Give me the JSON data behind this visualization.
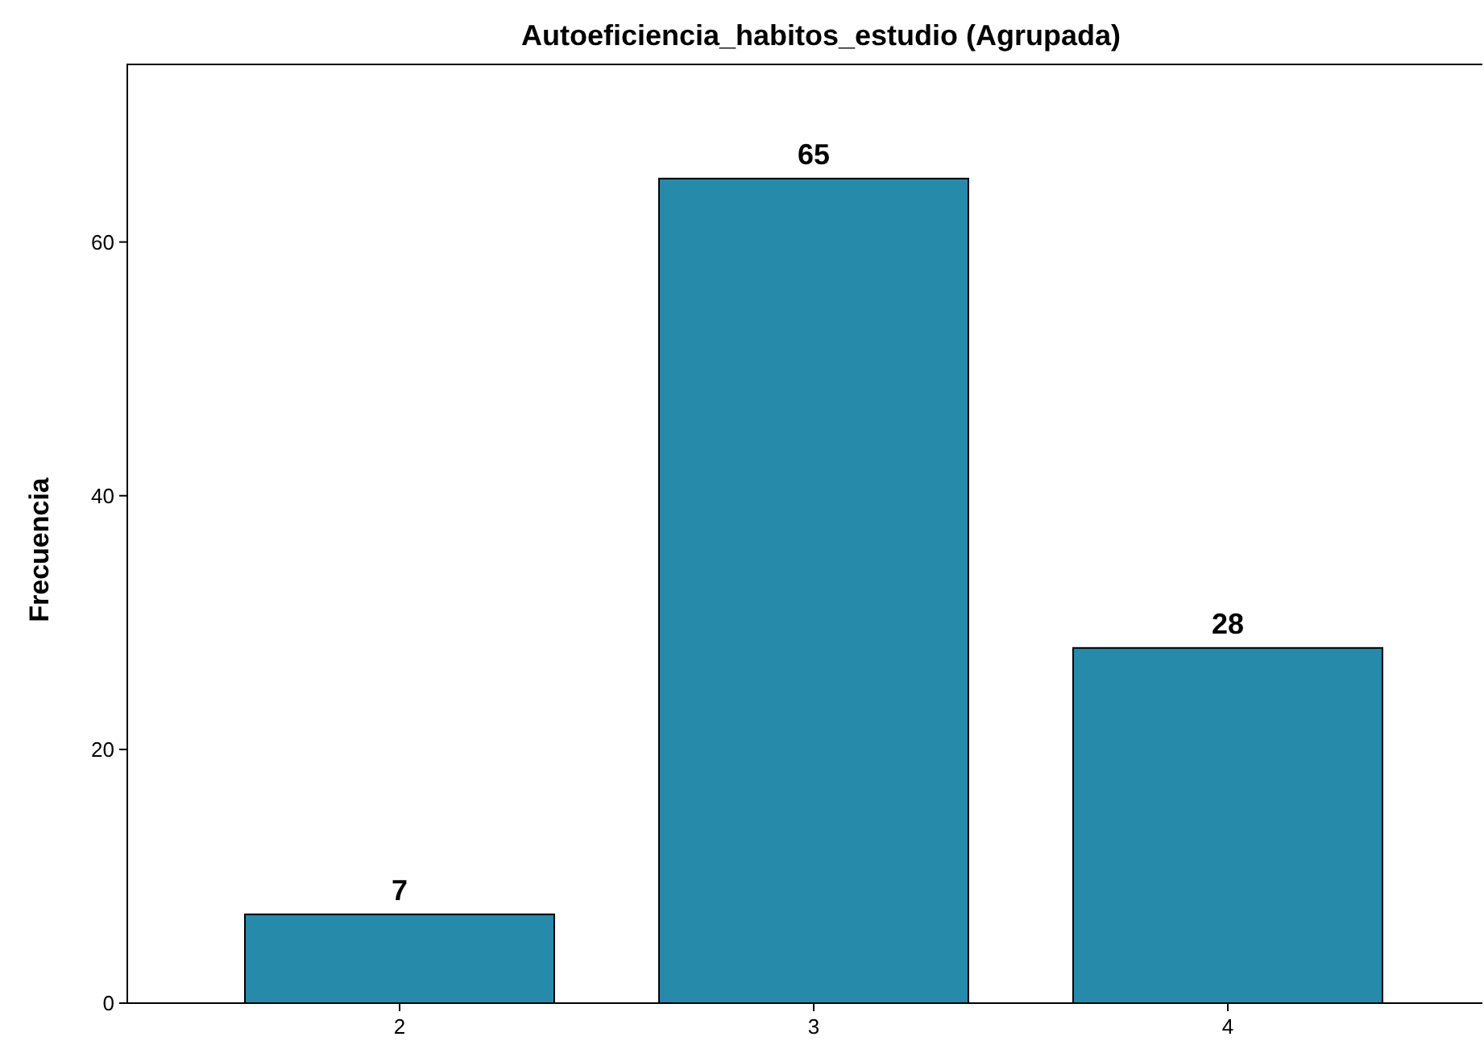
{
  "chart_data": {
    "type": "bar",
    "title": "Autoeficiencia_habitos_estudio (Agrupada)",
    "ylabel": "Frecuencia",
    "categories": [
      "2",
      "3",
      "4"
    ],
    "values": [
      7,
      65,
      28
    ],
    "color": "#268bab",
    "ylim": [
      0,
      74
    ],
    "yticks": [
      0,
      20,
      40,
      60
    ],
    "grid": false,
    "data_labels": true
  }
}
